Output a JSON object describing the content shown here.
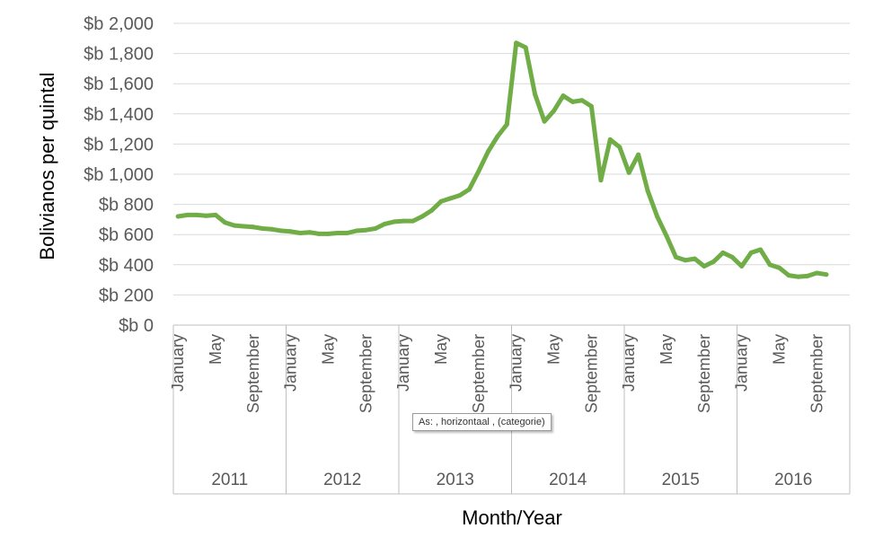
{
  "chart_data": {
    "type": "line",
    "xlabel": "Month/Year",
    "ylabel": "Bolivianos per quintal",
    "ylim": [
      0,
      2000
    ],
    "y_ticks": [
      "$b 0",
      "$b 200",
      "$b 400",
      "$b 600",
      "$b 800",
      "$b 1,000",
      "$b 1,200",
      "$b 1,400",
      "$b 1,600",
      "$b 1,800",
      "$b 2,000"
    ],
    "years": [
      "2011",
      "2012",
      "2013",
      "2014",
      "2015",
      "2016"
    ],
    "month_labels": [
      "January",
      "May",
      "September"
    ],
    "grid": true,
    "line_color": "#70ad47",
    "series": [
      {
        "values": [
          720,
          730,
          730,
          725,
          730,
          680,
          660,
          655,
          650,
          640,
          635,
          625,
          620,
          610,
          615,
          605,
          605,
          610,
          610,
          625,
          630,
          640,
          670,
          685,
          690,
          690,
          720,
          760,
          820,
          840,
          860,
          900,
          1020,
          1150,
          1250,
          1330,
          1870,
          1840,
          1530,
          1350,
          1420,
          1520,
          1480,
          1490,
          1450,
          960,
          1230,
          1180,
          1010,
          1130,
          890,
          720,
          590,
          450,
          430,
          440,
          390,
          420,
          480,
          450,
          390,
          480,
          500,
          400,
          380,
          330,
          320,
          325,
          345,
          335
        ]
      }
    ]
  },
  "tooltip": "As: , horizontaal , (categorie)"
}
